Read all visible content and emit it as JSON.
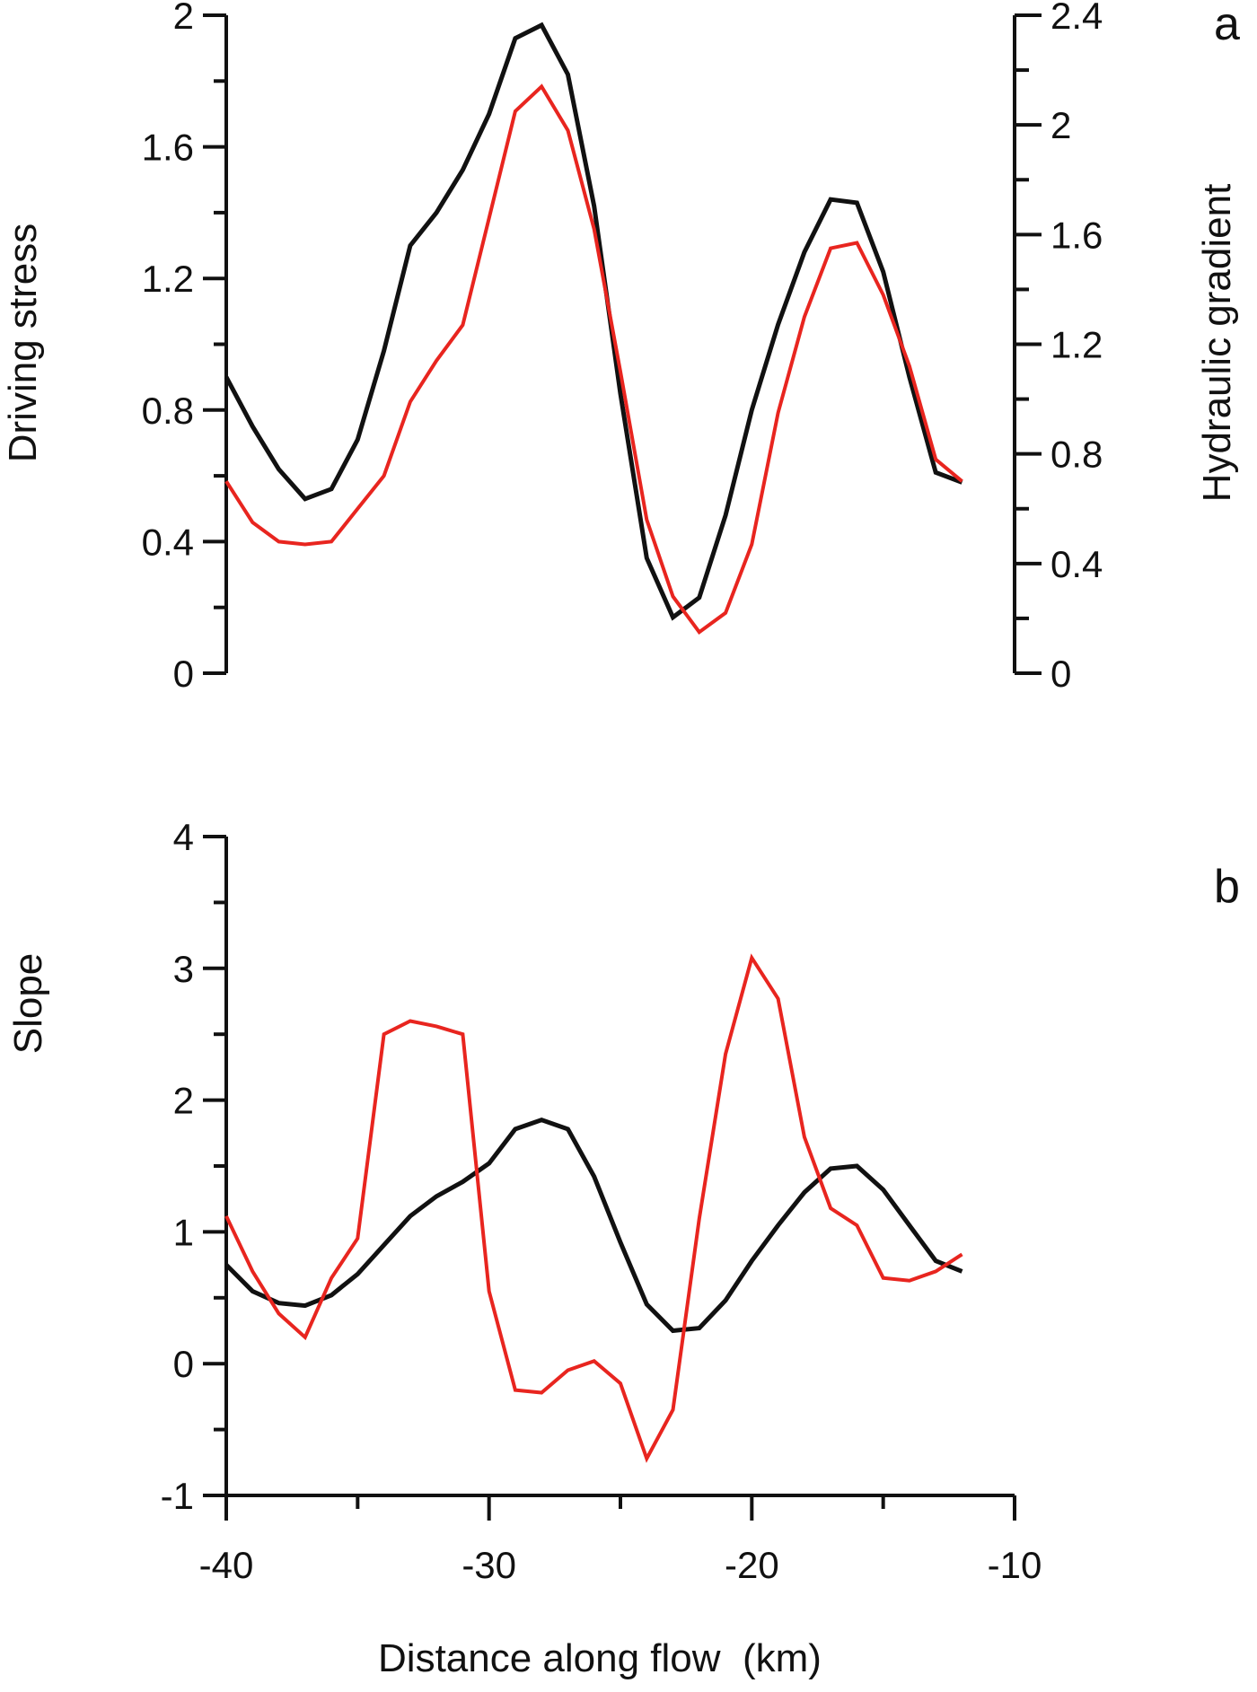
{
  "chart_data": [
    {
      "panel": "a",
      "type": "line",
      "panel_label": "a",
      "xlabel": "",
      "ylabel": "Driving stress",
      "ylabel_right": "Hydraulic gradient",
      "xlim": [
        -40,
        -10
      ],
      "ylim": [
        0,
        2
      ],
      "ylim_right": [
        0,
        2.4
      ],
      "yticks": [
        "0",
        "0.4",
        "0.8",
        "1.2",
        "1.6",
        "2"
      ],
      "yticks_right": [
        "0",
        "0.4",
        "0.8",
        "1.2",
        "1.6",
        "2",
        "2.4"
      ],
      "grid": false,
      "series": [
        {
          "color": "#111111",
          "axis": "left",
          "x": [
            -40,
            -39,
            -38,
            -37,
            -36,
            -35,
            -34,
            -33,
            -32,
            -31,
            -30,
            -29,
            -28,
            -27,
            -26,
            -25,
            -24,
            -23,
            -22,
            -21,
            -20,
            -19,
            -18,
            -17,
            -16,
            -15,
            -14,
            -13,
            -12
          ],
          "y": [
            0.9,
            0.75,
            0.62,
            0.53,
            0.56,
            0.71,
            0.98,
            1.3,
            1.4,
            1.53,
            1.7,
            1.93,
            1.97,
            1.82,
            1.42,
            0.85,
            0.35,
            0.17,
            0.23,
            0.48,
            0.8,
            1.06,
            1.28,
            1.44,
            1.43,
            1.22,
            0.9,
            0.61,
            0.58
          ]
        },
        {
          "color": "#e8251f",
          "axis": "right",
          "x": [
            -40,
            -39,
            -38,
            -37,
            -36,
            -35,
            -34,
            -33,
            -32,
            -31,
            -30,
            -29,
            -28,
            -27,
            -26,
            -25,
            -24,
            -23,
            -22,
            -21,
            -20,
            -19,
            -18,
            -17,
            -16,
            -15,
            -14,
            -13,
            -12
          ],
          "y": [
            0.7,
            0.55,
            0.48,
            0.47,
            0.48,
            0.6,
            0.72,
            0.99,
            1.14,
            1.27,
            1.66,
            2.05,
            2.14,
            1.98,
            1.62,
            1.1,
            0.56,
            0.28,
            0.15,
            0.22,
            0.47,
            0.95,
            1.3,
            1.55,
            1.57,
            1.38,
            1.12,
            0.78,
            0.7
          ]
        }
      ]
    },
    {
      "panel": "b",
      "type": "line",
      "panel_label": "b",
      "xlabel": "Distance along flow  (km)",
      "ylabel": "Slope",
      "xlim": [
        -40,
        -10
      ],
      "ylim": [
        -1,
        4
      ],
      "xticks": [
        "-40",
        "-30",
        "-20",
        "-10"
      ],
      "yticks": [
        "-1",
        "0",
        "1",
        "2",
        "3",
        "4"
      ],
      "grid": false,
      "series": [
        {
          "color": "#111111",
          "x": [
            -40,
            -39,
            -38,
            -37,
            -36,
            -35,
            -34,
            -33,
            -32,
            -31,
            -30,
            -29,
            -28,
            -27,
            -26,
            -25,
            -24,
            -23,
            -22,
            -21,
            -20,
            -19,
            -18,
            -17,
            -16,
            -15,
            -14,
            -13,
            -12
          ],
          "y": [
            0.75,
            0.55,
            0.46,
            0.44,
            0.52,
            0.68,
            0.9,
            1.12,
            1.27,
            1.38,
            1.52,
            1.78,
            1.85,
            1.78,
            1.42,
            0.92,
            0.45,
            0.25,
            0.27,
            0.48,
            0.78,
            1.05,
            1.3,
            1.48,
            1.5,
            1.32,
            1.05,
            0.78,
            0.7
          ]
        },
        {
          "color": "#e8251f",
          "x": [
            -40,
            -39,
            -38,
            -37,
            -36,
            -35,
            -34,
            -33,
            -32,
            -31,
            -30,
            -29,
            -28,
            -27,
            -26,
            -25,
            -24,
            -23,
            -22,
            -21,
            -20,
            -19,
            -18,
            -17,
            -16,
            -15,
            -14,
            -13,
            -12
          ],
          "y": [
            1.12,
            0.7,
            0.38,
            0.2,
            0.65,
            0.95,
            2.5,
            2.6,
            2.56,
            2.5,
            0.55,
            -0.2,
            -0.22,
            -0.05,
            0.02,
            -0.15,
            -0.72,
            -0.35,
            1.1,
            2.35,
            3.08,
            2.77,
            1.72,
            1.18,
            1.05,
            0.65,
            0.63,
            0.7,
            0.83
          ]
        }
      ]
    }
  ]
}
